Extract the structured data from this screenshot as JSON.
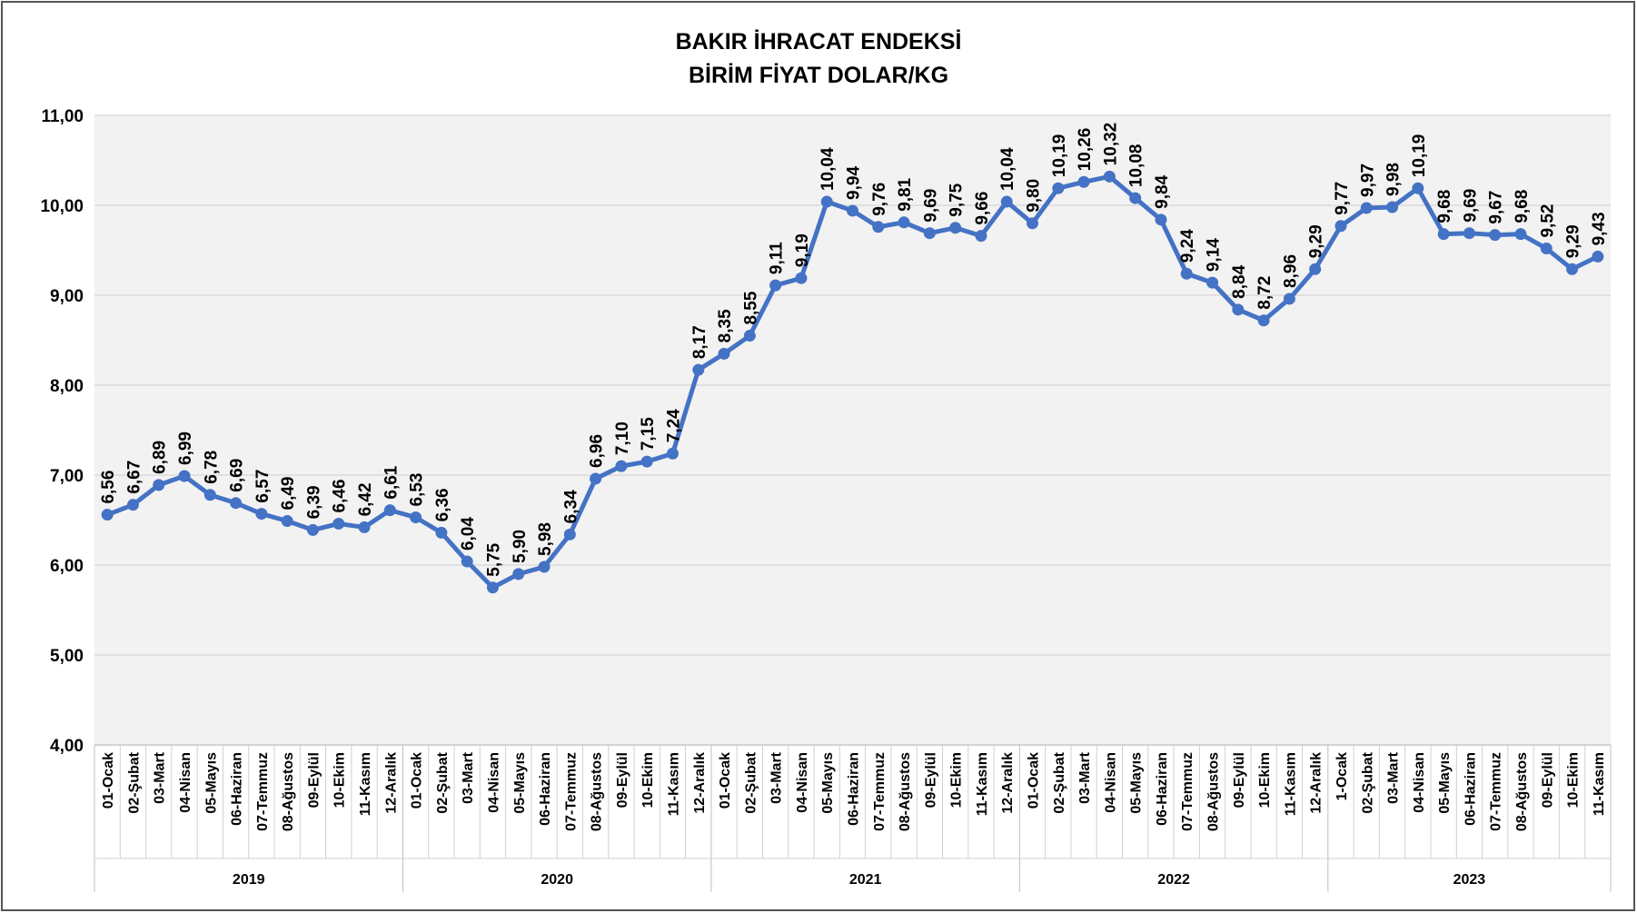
{
  "chart_data": {
    "type": "line",
    "title": "BAKIR İHRACAT ENDEKSİ",
    "subtitle": "BİRİM FİYAT DOLAR/KG",
    "category_groups": [
      {
        "name": "2019",
        "categories": [
          "01-Ocak",
          "02-Şubat",
          "03-Mart",
          "04-Nisan",
          "05-Mayıs",
          "06-Haziran",
          "07-Temmuz",
          "08-Ağustos",
          "09-Eylül",
          "10-Ekim",
          "11-Kasım",
          "12-Aralık"
        ]
      },
      {
        "name": "2020",
        "categories": [
          "01-Ocak",
          "02-Şubat",
          "03-Mart",
          "04-Nisan",
          "05-Mayıs",
          "06-Haziran",
          "07-Temmuz",
          "08-Ağustos",
          "09-Eylül",
          "10-Ekim",
          "11-Kasım",
          "12-Aralık"
        ]
      },
      {
        "name": "2021",
        "categories": [
          "01-Ocak",
          "02-Şubat",
          "03-Mart",
          "04-Nisan",
          "05-Mayıs",
          "06-Haziran",
          "07-Temmuz",
          "08-Ağustos",
          "09-Eylül",
          "10-Ekim",
          "11-Kasım",
          "12-Aralık"
        ]
      },
      {
        "name": "2022",
        "categories": [
          "01-Ocak",
          "02-Şubat",
          "03-Mart",
          "04-Nisan",
          "05-Mayıs",
          "06-Haziran",
          "07-Temmuz",
          "08-Ağustos",
          "09-Eylül",
          "10-Ekim",
          "11-Kasım",
          "12-Aralık"
        ]
      },
      {
        "name": "2023",
        "categories": [
          "1-Ocak",
          "02-Şubat",
          "03-Mart",
          "04-Nisan",
          "05-Mayıs",
          "06-Haziran",
          "07-Temmuz",
          "08-Ağustos",
          "09-Eylül",
          "10-Ekim",
          "11-Kasım"
        ]
      }
    ],
    "color": "#4472c4",
    "values": [
      6.56,
      6.67,
      6.89,
      6.99,
      6.78,
      6.69,
      6.57,
      6.49,
      6.39,
      6.46,
      6.42,
      6.61,
      6.53,
      6.36,
      6.04,
      5.75,
      5.9,
      5.98,
      6.34,
      6.96,
      7.1,
      7.15,
      7.24,
      8.17,
      8.35,
      8.55,
      9.11,
      9.19,
      10.04,
      9.94,
      9.76,
      9.81,
      9.69,
      9.75,
      9.66,
      10.04,
      9.8,
      10.19,
      10.26,
      10.32,
      10.08,
      9.84,
      9.24,
      9.14,
      8.84,
      8.72,
      8.96,
      9.29,
      9.77,
      9.97,
      9.98,
      10.19,
      9.68,
      9.69,
      9.67,
      9.68,
      9.52,
      9.29,
      9.43
    ],
    "value_labels": [
      "6,56",
      "6,67",
      "6,89",
      "6,99",
      "6,78",
      "6,69",
      "6,57",
      "6,49",
      "6,39",
      "6,46",
      "6,42",
      "6,61",
      "6,53",
      "6,36",
      "6,04",
      "5,75",
      "5,90",
      "5,98",
      "6,34",
      "6,96",
      "7,10",
      "7,15",
      "7,24",
      "8,17",
      "8,35",
      "8,55",
      "9,11",
      "9,19",
      "10,04",
      "9,94",
      "9,76",
      "9,81",
      "9,69",
      "9,75",
      "9,66",
      "10,04",
      "9,80",
      "10,19",
      "10,26",
      "10,32",
      "10,08",
      "9,84",
      "9,24",
      "9,14",
      "8,84",
      "8,72",
      "8,96",
      "9,29",
      "9,77",
      "9,97",
      "9,98",
      "10,19",
      "9,68",
      "9,69",
      "9,67",
      "9,68",
      "9,52",
      "9,29",
      "9,43"
    ],
    "ylim": [
      4,
      11
    ],
    "yticks": [
      {
        "value": 4,
        "label": "4,00"
      },
      {
        "value": 5,
        "label": "5,00"
      },
      {
        "value": 6,
        "label": "6,00"
      },
      {
        "value": 7,
        "label": "7,00"
      },
      {
        "value": 8,
        "label": "8,00"
      },
      {
        "value": 9,
        "label": "9,00"
      },
      {
        "value": 10,
        "label": "10,00"
      },
      {
        "value": 11,
        "label": "11,00"
      }
    ],
    "grid": true
  }
}
